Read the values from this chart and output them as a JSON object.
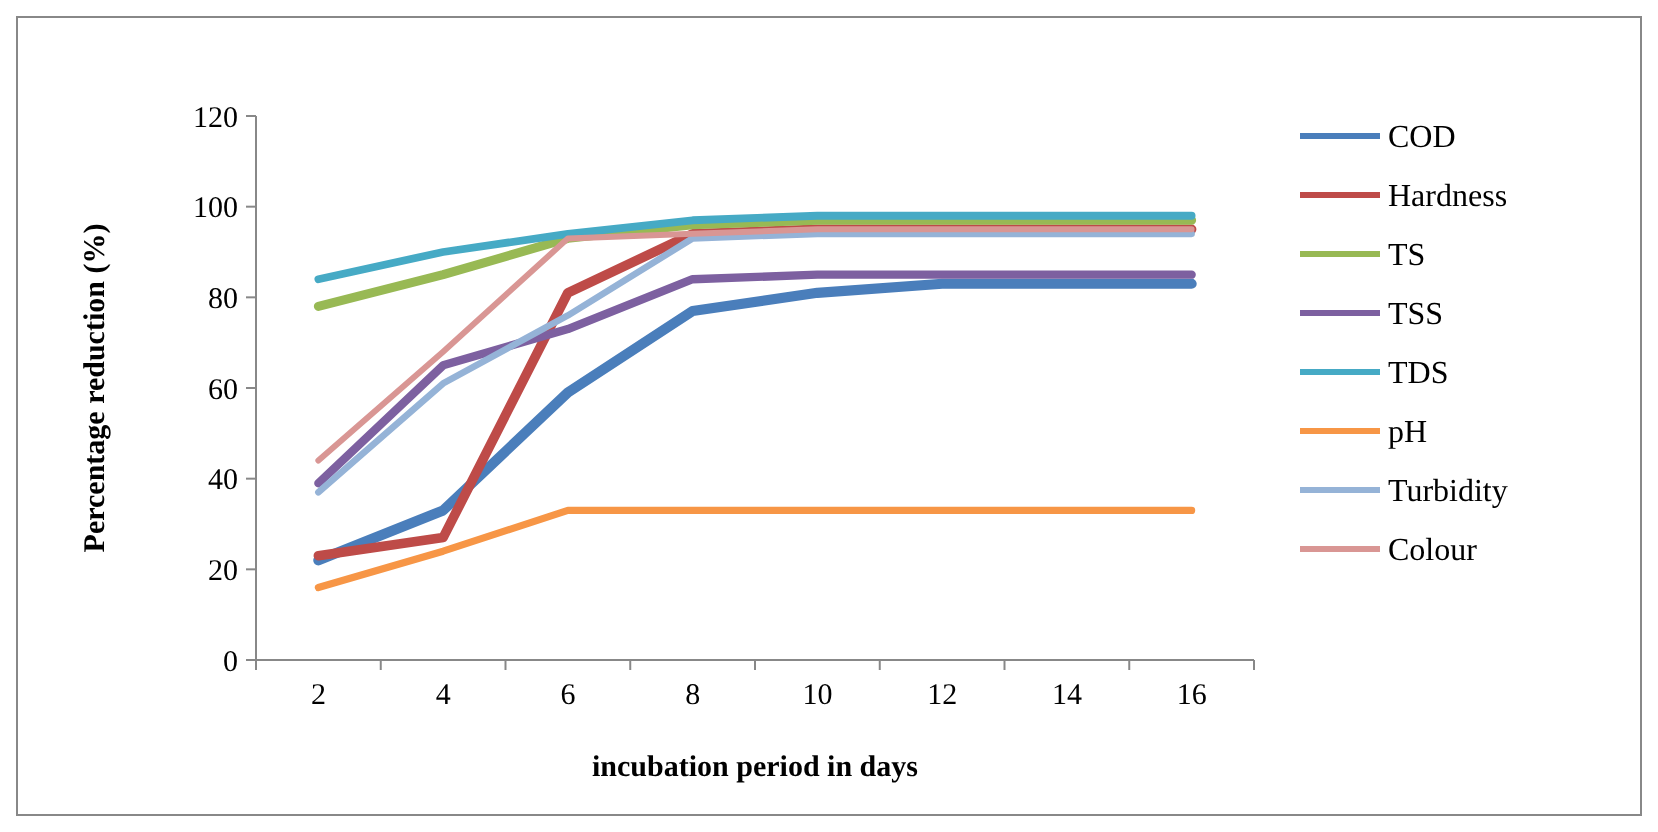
{
  "chart_data": {
    "type": "line",
    "xlabel": "incubation period in days",
    "ylabel": "Percentage reduction (%)",
    "categories": [
      "2",
      "4",
      "6",
      "8",
      "10",
      "12",
      "14",
      "16"
    ],
    "ylim": [
      0,
      120
    ],
    "yticks": [
      0,
      20,
      40,
      60,
      80,
      100,
      120
    ],
    "legend": "right",
    "grid": false,
    "marker": "none",
    "series": [
      {
        "name": "COD",
        "color": "#4a7ebb",
        "values": [
          22,
          33,
          59,
          77,
          81,
          83,
          83,
          83
        ]
      },
      {
        "name": "Hardness",
        "color": "#be4b48",
        "values": [
          23,
          27,
          81,
          94,
          95,
          95,
          95,
          95
        ]
      },
      {
        "name": "TS",
        "color": "#98b954",
        "values": [
          78,
          85,
          93,
          96,
          97,
          97,
          97,
          97
        ]
      },
      {
        "name": "TSS",
        "color": "#7d60a0",
        "values": [
          39,
          65,
          73,
          84,
          85,
          85,
          85,
          85
        ]
      },
      {
        "name": "TDS",
        "color": "#46aac5",
        "values": [
          84,
          90,
          94,
          97,
          98,
          98,
          98,
          98
        ]
      },
      {
        "name": "pH",
        "color": "#f79646",
        "values": [
          16,
          24,
          33,
          33,
          33,
          33,
          33,
          33
        ]
      },
      {
        "name": "Turbidity",
        "color": "#95b3d7",
        "values": [
          37,
          61,
          76,
          93,
          94,
          94,
          94,
          94
        ]
      },
      {
        "name": "Colour",
        "color": "#d99694",
        "values": [
          44,
          68,
          93,
          94,
          95,
          95,
          95,
          95
        ]
      }
    ]
  }
}
